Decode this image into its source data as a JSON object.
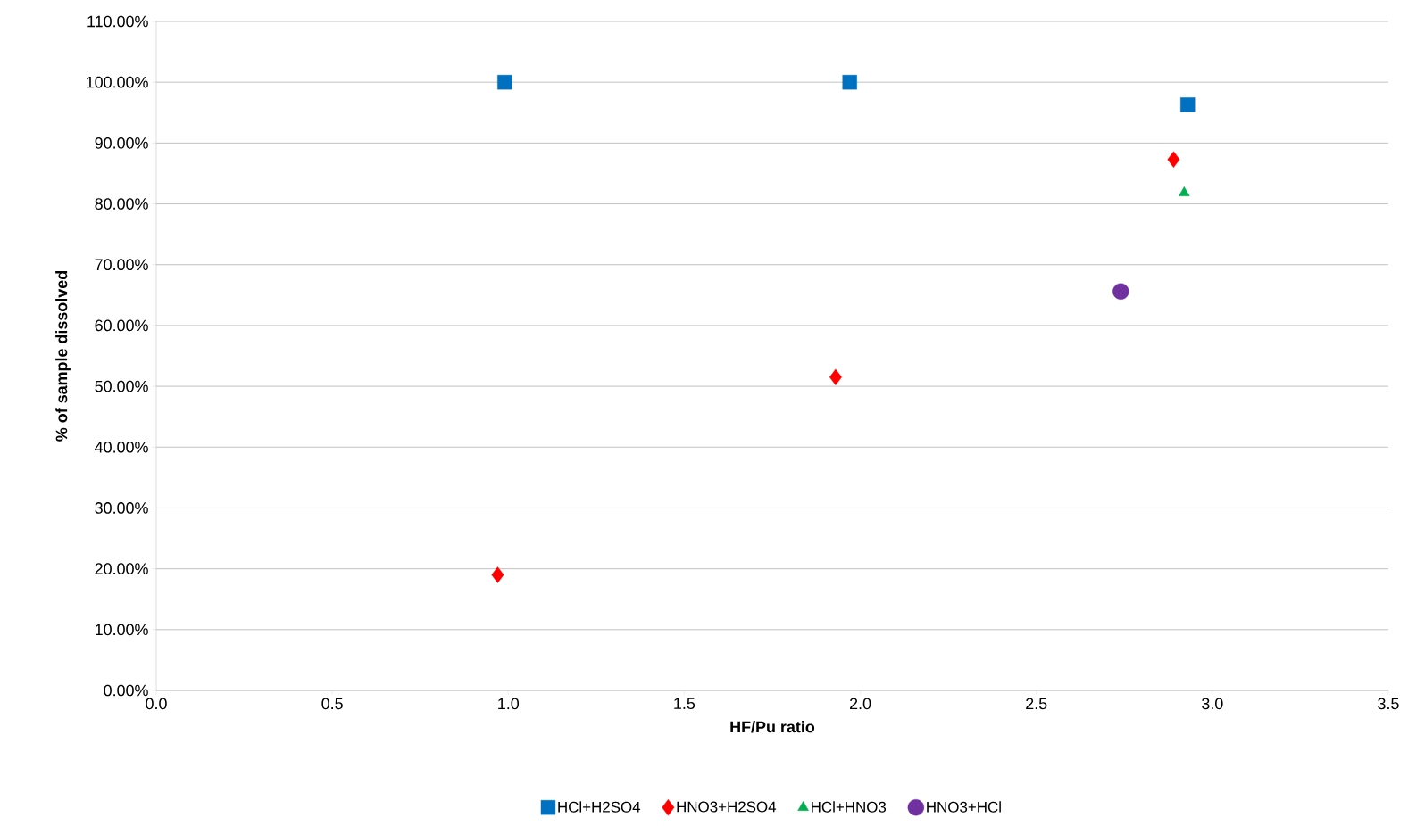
{
  "chart_data": {
    "type": "scatter",
    "xlabel": "HF/Pu ratio",
    "ylabel": "% of sample dissolved",
    "xlim": [
      0,
      3.5
    ],
    "ylim": [
      0,
      110
    ],
    "xticks": [
      {
        "value": 0,
        "label": "0.0"
      },
      {
        "value": 0.5,
        "label": "0.5"
      },
      {
        "value": 1,
        "label": "1.0"
      },
      {
        "value": 1.5,
        "label": "1.5"
      },
      {
        "value": 2,
        "label": "2.0"
      },
      {
        "value": 2.5,
        "label": "2.5"
      },
      {
        "value": 3,
        "label": "3.0"
      },
      {
        "value": 3.5,
        "label": "3.5"
      }
    ],
    "yticks": [
      {
        "value": 0,
        "label": "0.00%"
      },
      {
        "value": 10,
        "label": "10.00%"
      },
      {
        "value": 20,
        "label": "20.00%"
      },
      {
        "value": 30,
        "label": "30.00%"
      },
      {
        "value": 40,
        "label": "40.00%"
      },
      {
        "value": 50,
        "label": "50.00%"
      },
      {
        "value": 60,
        "label": "60.00%"
      },
      {
        "value": 70,
        "label": "70.00%"
      },
      {
        "value": 80,
        "label": "80.00%"
      },
      {
        "value": 90,
        "label": "90.00%"
      },
      {
        "value": 100,
        "label": "100.00%"
      },
      {
        "value": 110,
        "label": "110.00%"
      }
    ],
    "grid": "y",
    "legend": "bottom",
    "series": [
      {
        "name": "HCl+H2SO4",
        "color": "#0070c0",
        "marker": "square",
        "x": [
          0.99,
          1.97,
          2.93
        ],
        "values": [
          100,
          100,
          96.3
        ]
      },
      {
        "name": "HNO3+H2SO4",
        "color": "#ff0000",
        "marker": "diamond",
        "x": [
          0.97,
          1.93,
          2.89
        ],
        "values": [
          19,
          51.5,
          87.3
        ]
      },
      {
        "name": "HCl+HNO3",
        "color": "#00b050",
        "marker": "triangle",
        "x": [
          2.92
        ],
        "values": [
          81.8
        ]
      },
      {
        "name": "HNO3+HCl",
        "color": "#7030a0",
        "marker": "circle",
        "x": [
          2.74
        ],
        "values": [
          65.6
        ]
      }
    ]
  }
}
